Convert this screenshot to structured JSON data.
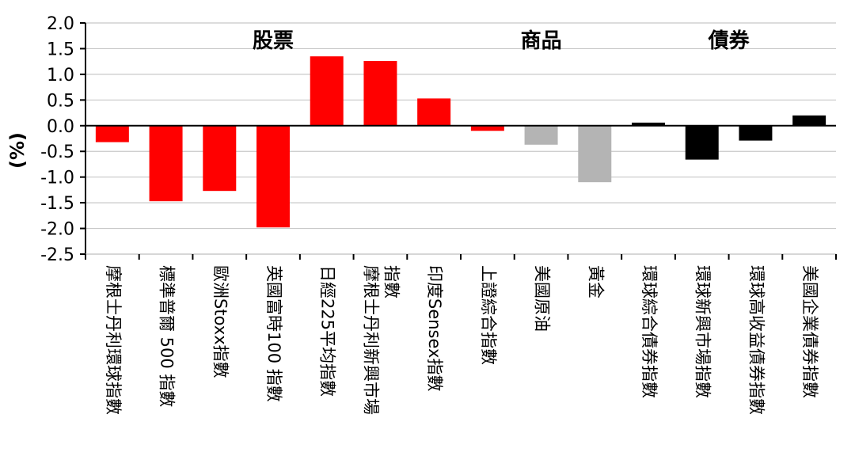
{
  "chart_data": {
    "type": "bar",
    "ylabel": "(%)",
    "ylim": [
      -2.5,
      2.0
    ],
    "yticks": [
      "2.0",
      "1.5",
      "1.0",
      "0.5",
      "0.0",
      "-0.5",
      "-1.0",
      "-1.5",
      "-2.0",
      "-2.5"
    ],
    "ytick_values": [
      2.0,
      1.5,
      1.0,
      0.5,
      0.0,
      -0.5,
      -1.0,
      -1.5,
      -2.0,
      -2.5
    ],
    "grid": true,
    "categories": [
      [
        "摩根士丹利環球指數"
      ],
      [
        "標準普爾 500 指數"
      ],
      [
        "歐洲Stoxx指數"
      ],
      [
        "英國富時100 指數"
      ],
      [
        "日經225平均指數"
      ],
      [
        "摩根士丹利新興市場",
        "指數"
      ],
      [
        "印度Sensex指數"
      ],
      [
        "上證綜合指數"
      ],
      [
        "美國原油"
      ],
      [
        "黃金"
      ],
      [
        "環球綜合債券指數"
      ],
      [
        "環球新興市場指數"
      ],
      [
        "環球高收益債券指數"
      ],
      [
        "美國企業債券指數"
      ]
    ],
    "values": [
      -0.32,
      -1.47,
      -1.27,
      -1.98,
      1.35,
      1.26,
      0.53,
      -0.1,
      -0.37,
      -1.1,
      0.06,
      -0.66,
      -0.29,
      0.2
    ],
    "bar_colors": [
      "#ff0000",
      "#ff0000",
      "#ff0000",
      "#ff0000",
      "#ff0000",
      "#ff0000",
      "#ff0000",
      "#ff0000",
      "#b4b4b4",
      "#b4b4b4",
      "#000000",
      "#000000",
      "#000000",
      "#000000"
    ],
    "groups": [
      {
        "label": "股票",
        "first": 0,
        "last": 6
      },
      {
        "label": "商品",
        "first": 7,
        "last": 9
      },
      {
        "label": "債券",
        "first": 10,
        "last": 13
      }
    ]
  }
}
